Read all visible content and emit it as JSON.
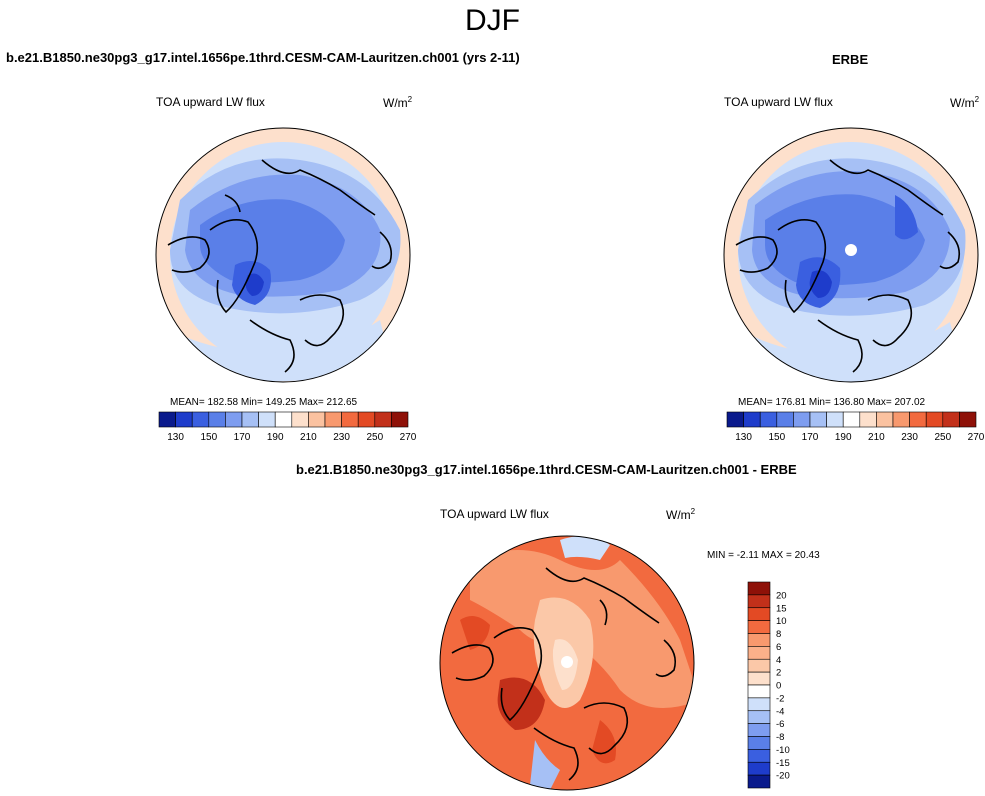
{
  "title": "DJF",
  "left_case": "b.e21.B1850.ne30pg3_g17.intel.1656pe.1thrd.CESM-CAM-Lauritzen.ch001 (yrs 2-11)",
  "right_case": "ERBE",
  "diff_case": "b.e21.B1850.ne30pg3_g17.intel.1656pe.1thrd.CESM-CAM-Lauritzen.ch001 - ERBE",
  "panels": {
    "model": {
      "title": "TOA upward LW flux",
      "unit_base": "W/m",
      "unit_exp": "2",
      "stats": "MEAN= 182.58  Min= 149.25  Max= 212.65"
    },
    "obs": {
      "title": "TOA upward LW flux",
      "unit_base": "W/m",
      "unit_exp": "2",
      "stats": "MEAN= 176.81  Min= 136.80  Max= 207.02"
    },
    "diff": {
      "title": "TOA upward LW flux",
      "unit_base": "W/m",
      "unit_exp": "2",
      "stats": "MIN =  -2.11 MAX =  20.43"
    }
  },
  "chart_data": [
    {
      "type": "heatmap",
      "title": "TOA upward LW flux",
      "units": "W/m2",
      "mean": 182.58,
      "min": 149.25,
      "max": 212.65,
      "colorbar": {
        "orientation": "horizontal",
        "labels": [
          "130",
          "150",
          "170",
          "190",
          "210",
          "230",
          "250",
          "270"
        ],
        "colors": [
          "#0a1a8c",
          "#1e3ccb",
          "#3a5fe0",
          "#5a7fe8",
          "#7e9df0",
          "#a6c0f5",
          "#cfe0fa",
          "#ffffff",
          "#fde0cc",
          "#fbc2a0",
          "#f8996e",
          "#f26a3f",
          "#e34a24",
          "#c2301a",
          "#8e1108"
        ]
      }
    },
    {
      "type": "heatmap",
      "title": "TOA upward LW flux",
      "units": "W/m2",
      "mean": 176.81,
      "min": 136.8,
      "max": 207.02,
      "colorbar": {
        "orientation": "horizontal",
        "labels": [
          "130",
          "150",
          "170",
          "190",
          "210",
          "230",
          "250",
          "270"
        ],
        "colors": [
          "#0a1a8c",
          "#1e3ccb",
          "#3a5fe0",
          "#5a7fe8",
          "#7e9df0",
          "#a6c0f5",
          "#cfe0fa",
          "#ffffff",
          "#fde0cc",
          "#fbc2a0",
          "#f8996e",
          "#f26a3f",
          "#e34a24",
          "#c2301a",
          "#8e1108"
        ]
      }
    },
    {
      "type": "heatmap",
      "title": "TOA upward LW flux",
      "units": "W/m2",
      "min": -2.11,
      "max": 20.43,
      "colorbar": {
        "orientation": "vertical",
        "labels": [
          "20",
          "15",
          "10",
          "8",
          "6",
          "4",
          "2",
          "0",
          "-2",
          "-4",
          "-6",
          "-8",
          "-10",
          "-15",
          "-20"
        ],
        "colors": [
          "#8e1108",
          "#c2301a",
          "#e34a24",
          "#f26a3f",
          "#f8996e",
          "#fbb08a",
          "#fbc8a8",
          "#fde0cc",
          "#ffffff",
          "#cfe0fa",
          "#a6c0f5",
          "#7e9df0",
          "#5a7fe8",
          "#3a5fe0",
          "#1e3ccb",
          "#0a1a8c"
        ]
      }
    }
  ]
}
